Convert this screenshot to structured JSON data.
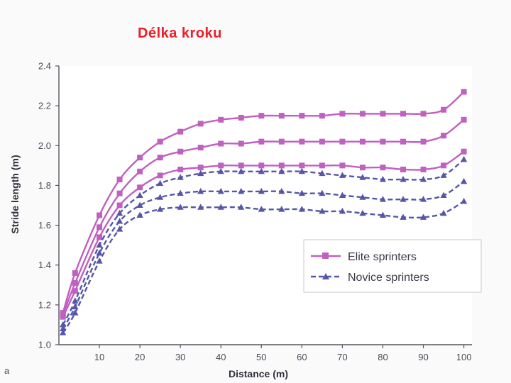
{
  "slide": {
    "title": "Délka kroku",
    "corner_mark": "a"
  },
  "chart_data": {
    "type": "line",
    "title": "",
    "xlabel": "Distance (m)",
    "ylabel": "Stride length (m)",
    "xlim": [
      0,
      102
    ],
    "ylim": [
      1.0,
      2.4
    ],
    "xticks": [
      10,
      20,
      30,
      40,
      50,
      60,
      70,
      80,
      90,
      100
    ],
    "yticks": [
      1.0,
      1.2,
      1.4,
      1.6,
      1.8,
      2.0,
      2.2,
      2.4
    ],
    "x": [
      1,
      4,
      10,
      15,
      20,
      25,
      30,
      35,
      40,
      45,
      50,
      55,
      60,
      65,
      70,
      75,
      80,
      85,
      90,
      95,
      100
    ],
    "legend": {
      "position": "lower-right",
      "entries": [
        "Elite sprinters",
        "Novice sprinters"
      ]
    },
    "colors": {
      "elite": "#c060c0",
      "novice": "#5656a8"
    },
    "series": [
      {
        "group": "elite",
        "values": [
          1.16,
          1.36,
          1.65,
          1.83,
          1.94,
          2.02,
          2.07,
          2.11,
          2.13,
          2.14,
          2.15,
          2.15,
          2.15,
          2.15,
          2.16,
          2.16,
          2.16,
          2.16,
          2.16,
          2.18,
          2.27
        ]
      },
      {
        "group": "elite",
        "values": [
          1.15,
          1.31,
          1.59,
          1.76,
          1.87,
          1.94,
          1.97,
          1.99,
          2.01,
          2.01,
          2.02,
          2.02,
          2.02,
          2.02,
          2.02,
          2.02,
          2.02,
          2.02,
          2.02,
          2.05,
          2.13
        ]
      },
      {
        "group": "elite",
        "values": [
          1.14,
          1.27,
          1.54,
          1.7,
          1.79,
          1.85,
          1.88,
          1.89,
          1.9,
          1.9,
          1.9,
          1.9,
          1.9,
          1.9,
          1.9,
          1.89,
          1.89,
          1.88,
          1.88,
          1.9,
          1.97
        ]
      },
      {
        "group": "novice",
        "values": [
          1.1,
          1.22,
          1.5,
          1.66,
          1.75,
          1.81,
          1.84,
          1.86,
          1.87,
          1.87,
          1.87,
          1.87,
          1.87,
          1.86,
          1.85,
          1.84,
          1.83,
          1.83,
          1.83,
          1.85,
          1.93
        ]
      },
      {
        "group": "novice",
        "values": [
          1.08,
          1.19,
          1.46,
          1.62,
          1.7,
          1.74,
          1.76,
          1.77,
          1.77,
          1.77,
          1.77,
          1.77,
          1.76,
          1.76,
          1.75,
          1.74,
          1.73,
          1.73,
          1.73,
          1.75,
          1.82
        ]
      },
      {
        "group": "novice",
        "values": [
          1.06,
          1.16,
          1.42,
          1.58,
          1.65,
          1.68,
          1.69,
          1.69,
          1.69,
          1.69,
          1.68,
          1.68,
          1.68,
          1.67,
          1.67,
          1.66,
          1.65,
          1.64,
          1.64,
          1.66,
          1.72
        ]
      }
    ]
  }
}
